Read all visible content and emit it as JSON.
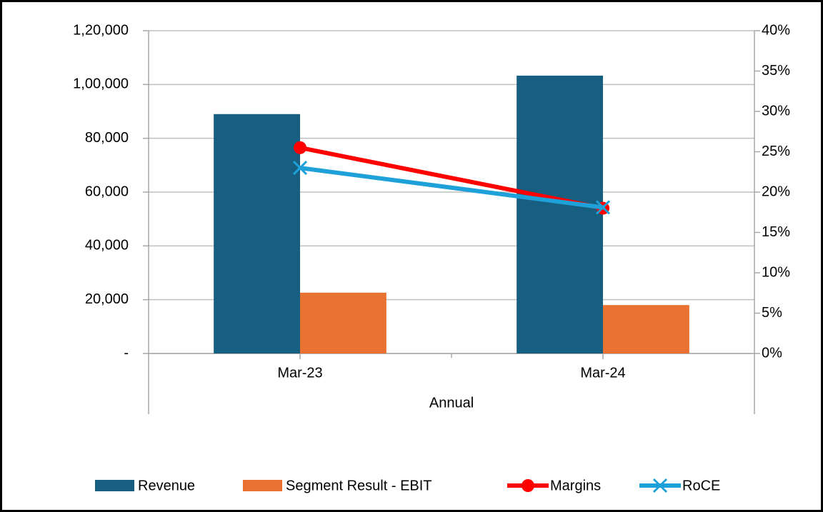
{
  "chart_data": {
    "type": "bar",
    "categories": [
      "Mar-23",
      "Mar-24"
    ],
    "category_group": "Annual",
    "series": [
      {
        "name": "Revenue",
        "color": "#175f80",
        "values": [
          89000,
          103300
        ]
      },
      {
        "name": "Segment Result - EBIT",
        "color": "#e97132",
        "values": [
          22600,
          18000
        ]
      },
      {
        "name": "Margins",
        "type": "line",
        "marker": "circle",
        "axis": "y2",
        "color": "#ff0000",
        "values": [
          25.5,
          18
        ]
      },
      {
        "name": "RoCE",
        "type": "line",
        "marker": "x",
        "axis": "y2",
        "color": "#1ea0d8",
        "values": [
          23,
          18.1
        ]
      }
    ],
    "ylim": [
      0,
      120000
    ],
    "yticks": [
      {
        "value": 0,
        "label": "-"
      },
      {
        "value": 20000,
        "label": "20,000"
      },
      {
        "value": 40000,
        "label": "40,000"
      },
      {
        "value": 60000,
        "label": "60,000"
      },
      {
        "value": 80000,
        "label": "80,000"
      },
      {
        "value": 100000,
        "label": "1,00,000"
      },
      {
        "value": 120000,
        "label": "1,20,000"
      }
    ],
    "y2lim": [
      0,
      40
    ],
    "y2ticks": [
      {
        "value": 0,
        "label": "0%"
      },
      {
        "value": 5,
        "label": "5%"
      },
      {
        "value": 10,
        "label": "10%"
      },
      {
        "value": 15,
        "label": "15%"
      },
      {
        "value": 20,
        "label": "20%"
      },
      {
        "value": 25,
        "label": "25%"
      },
      {
        "value": 30,
        "label": "30%"
      },
      {
        "value": 35,
        "label": "35%"
      },
      {
        "value": 40,
        "label": "40%"
      }
    ],
    "grid": true,
    "legend": "bottom"
  }
}
